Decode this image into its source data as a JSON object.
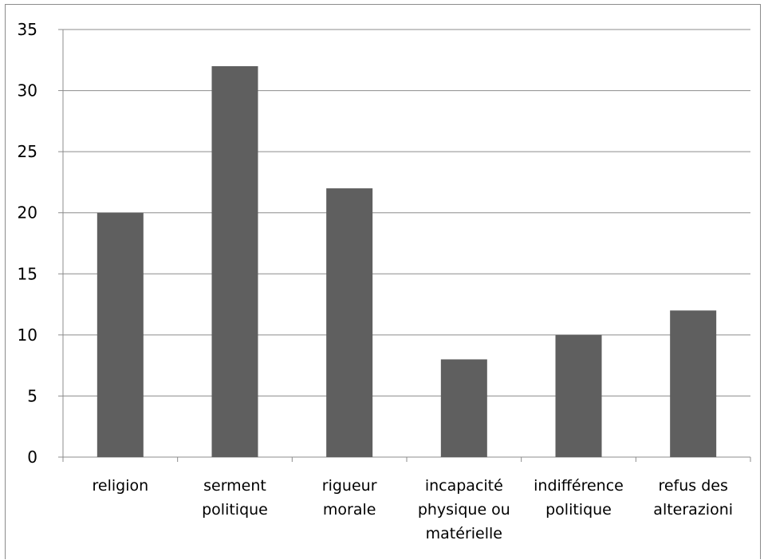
{
  "chart_data": {
    "type": "bar",
    "categories": [
      [
        "religion"
      ],
      [
        "serment",
        "politique"
      ],
      [
        "rigueur",
        "morale"
      ],
      [
        "incapacité",
        "physique ou",
        "matérielle"
      ],
      [
        "indifférence",
        "politique"
      ],
      [
        "refus des",
        "alterazioni"
      ]
    ],
    "values": [
      20,
      32,
      22,
      8,
      10,
      12
    ],
    "yticks": [
      "0",
      "5",
      "10",
      "15",
      "20",
      "25",
      "30",
      "35"
    ],
    "ylim": [
      0,
      35
    ],
    "grid": true,
    "legend": "none",
    "bar_color": "#5f5f5f",
    "grid_color": "#8c8c8c"
  }
}
